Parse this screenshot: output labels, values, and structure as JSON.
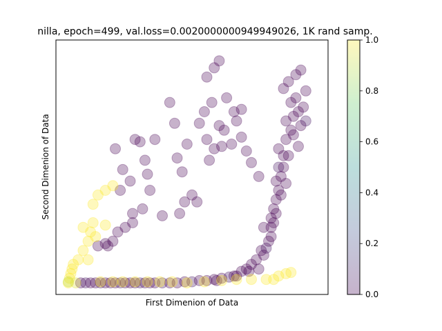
{
  "chart_data": {
    "type": "scatter",
    "title": "nilla, epoch=499, val.loss=0.0020000000949949026, 1K rand samp.",
    "xlabel": "First Dimenion of Data",
    "ylabel": "Second Dimenion of Data",
    "xticks": false,
    "yticks": false,
    "xlim": [
      -0.05,
      1.05
    ],
    "ylim": [
      -0.05,
      1.05
    ],
    "marker_alpha": 0.3,
    "colormap": "viridis",
    "colorbar": {
      "range": [
        0.0,
        1.0
      ],
      "tick_labels": [
        "0.0",
        "0.2",
        "0.4",
        "0.6",
        "0.8",
        "1.0"
      ]
    },
    "colormap_stops": [
      "#440154",
      "#3b528b",
      "#21918c",
      "#5ec962",
      "#fde725"
    ],
    "points": [
      {
        "x": 0.05,
        "y": 0.0,
        "c": 0.0
      },
      {
        "x": 0.07,
        "y": 0.0,
        "c": 0.05
      },
      {
        "x": 0.09,
        "y": 0.0,
        "c": 0.0
      },
      {
        "x": 0.11,
        "y": 0.0,
        "c": 0.0
      },
      {
        "x": 0.13,
        "y": 0.0,
        "c": 0.05
      },
      {
        "x": 0.15,
        "y": 0.0,
        "c": 0.0
      },
      {
        "x": 0.17,
        "y": 0.0,
        "c": 0.0
      },
      {
        "x": 0.19,
        "y": 0.0,
        "c": 0.0
      },
      {
        "x": 0.21,
        "y": 0.0,
        "c": 0.05
      },
      {
        "x": 0.23,
        "y": 0.0,
        "c": 0.0
      },
      {
        "x": 0.25,
        "y": 0.0,
        "c": 0.0
      },
      {
        "x": 0.27,
        "y": 0.0,
        "c": 0.0
      },
      {
        "x": 0.29,
        "y": 0.0,
        "c": 0.05
      },
      {
        "x": 0.31,
        "y": 0.0,
        "c": 0.0
      },
      {
        "x": 0.33,
        "y": 0.0,
        "c": 0.0
      },
      {
        "x": 0.35,
        "y": 0.0,
        "c": 0.0
      },
      {
        "x": 0.38,
        "y": 0.0,
        "c": 0.05
      },
      {
        "x": 0.41,
        "y": 0.0,
        "c": 0.0
      },
      {
        "x": 0.44,
        "y": 0.0,
        "c": 0.0
      },
      {
        "x": 0.47,
        "y": 0.005,
        "c": 0.0
      },
      {
        "x": 0.5,
        "y": 0.005,
        "c": 0.05
      },
      {
        "x": 0.53,
        "y": 0.01,
        "c": 0.0
      },
      {
        "x": 0.56,
        "y": 0.01,
        "c": 0.0
      },
      {
        "x": 0.59,
        "y": 0.015,
        "c": 0.0
      },
      {
        "x": 0.62,
        "y": 0.02,
        "c": 0.0
      },
      {
        "x": 0.65,
        "y": 0.025,
        "c": 0.05
      },
      {
        "x": 0.68,
        "y": 0.03,
        "c": 0.0
      },
      {
        "x": 0.7,
        "y": 0.05,
        "c": 0.0
      },
      {
        "x": 0.72,
        "y": 0.06,
        "c": 0.0
      },
      {
        "x": 0.74,
        "y": 0.08,
        "c": 0.0
      },
      {
        "x": 0.77,
        "y": 0.06,
        "c": 0.0
      },
      {
        "x": 0.79,
        "y": 0.12,
        "c": 0.0
      },
      {
        "x": 0.8,
        "y": 0.15,
        "c": 0.05
      },
      {
        "x": 0.81,
        "y": 0.18,
        "c": 0.0
      },
      {
        "x": 0.79,
        "y": 0.24,
        "c": 0.0
      },
      {
        "x": 0.82,
        "y": 0.24,
        "c": 0.0
      },
      {
        "x": 0.82,
        "y": 0.28,
        "c": 0.0
      },
      {
        "x": 0.83,
        "y": 0.32,
        "c": 0.0
      },
      {
        "x": 0.84,
        "y": 0.36,
        "c": 0.0
      },
      {
        "x": 0.85,
        "y": 0.4,
        "c": 0.0
      },
      {
        "x": 0.84,
        "y": 0.44,
        "c": 0.0
      },
      {
        "x": 0.86,
        "y": 0.46,
        "c": 0.0
      },
      {
        "x": 0.85,
        "y": 0.5,
        "c": 0.05
      },
      {
        "x": 0.87,
        "y": 0.55,
        "c": 0.0
      },
      {
        "x": 0.85,
        "y": 0.58,
        "c": 0.0
      },
      {
        "x": 0.88,
        "y": 0.62,
        "c": 0.0
      },
      {
        "x": 0.9,
        "y": 0.66,
        "c": 0.0
      },
      {
        "x": 0.88,
        "y": 0.7,
        "c": 0.0
      },
      {
        "x": 0.91,
        "y": 0.72,
        "c": 0.0
      },
      {
        "x": 0.9,
        "y": 0.78,
        "c": 0.0
      },
      {
        "x": 0.92,
        "y": 0.8,
        "c": 0.0
      },
      {
        "x": 0.93,
        "y": 0.74,
        "c": 0.0
      },
      {
        "x": 0.95,
        "y": 0.76,
        "c": 0.0
      },
      {
        "x": 0.94,
        "y": 0.68,
        "c": 0.0
      },
      {
        "x": 0.96,
        "y": 0.7,
        "c": 0.05
      },
      {
        "x": 0.87,
        "y": 0.84,
        "c": 0.0
      },
      {
        "x": 0.89,
        "y": 0.87,
        "c": 0.0
      },
      {
        "x": 0.92,
        "y": 0.9,
        "c": 0.0
      },
      {
        "x": 0.94,
        "y": 0.92,
        "c": 0.0
      },
      {
        "x": 0.96,
        "y": 0.83,
        "c": 0.0
      },
      {
        "x": 0.91,
        "y": 0.64,
        "c": 0.0
      },
      {
        "x": 0.93,
        "y": 0.59,
        "c": 0.0
      },
      {
        "x": 0.89,
        "y": 0.55,
        "c": 0.0
      },
      {
        "x": 0.87,
        "y": 0.5,
        "c": 0.0
      },
      {
        "x": 0.88,
        "y": 0.43,
        "c": 0.0
      },
      {
        "x": 0.86,
        "y": 0.38,
        "c": 0.0
      },
      {
        "x": 0.84,
        "y": 0.3,
        "c": 0.0
      },
      {
        "x": 0.83,
        "y": 0.26,
        "c": 0.0
      },
      {
        "x": 0.82,
        "y": 0.2,
        "c": 0.0
      },
      {
        "x": 0.78,
        "y": 0.14,
        "c": 0.0
      },
      {
        "x": 0.76,
        "y": 0.1,
        "c": 0.0
      },
      {
        "x": 0.73,
        "y": 0.05,
        "c": 0.0
      },
      {
        "x": 0.67,
        "y": 0.03,
        "c": 0.0
      },
      {
        "x": 0.6,
        "y": 0.01,
        "c": 0.0
      },
      {
        "x": 0.19,
        "y": 0.58,
        "c": 0.0
      },
      {
        "x": 0.22,
        "y": 0.49,
        "c": 0.0
      },
      {
        "x": 0.25,
        "y": 0.44,
        "c": 0.0
      },
      {
        "x": 0.21,
        "y": 0.4,
        "c": 0.0
      },
      {
        "x": 0.26,
        "y": 0.3,
        "c": 0.0
      },
      {
        "x": 0.3,
        "y": 0.32,
        "c": 0.0
      },
      {
        "x": 0.33,
        "y": 0.4,
        "c": 0.0
      },
      {
        "x": 0.27,
        "y": 0.62,
        "c": 0.0
      },
      {
        "x": 0.29,
        "y": 0.61,
        "c": 0.0
      },
      {
        "x": 0.31,
        "y": 0.53,
        "c": 0.0
      },
      {
        "x": 0.32,
        "y": 0.47,
        "c": 0.0
      },
      {
        "x": 0.35,
        "y": 0.62,
        "c": 0.0
      },
      {
        "x": 0.38,
        "y": 0.29,
        "c": 0.0
      },
      {
        "x": 0.41,
        "y": 0.78,
        "c": 0.0
      },
      {
        "x": 0.43,
        "y": 0.69,
        "c": 0.0
      },
      {
        "x": 0.44,
        "y": 0.54,
        "c": 0.0
      },
      {
        "x": 0.46,
        "y": 0.48,
        "c": 0.0
      },
      {
        "x": 0.48,
        "y": 0.6,
        "c": 0.0
      },
      {
        "x": 0.5,
        "y": 0.38,
        "c": 0.0
      },
      {
        "x": 0.52,
        "y": 0.35,
        "c": 0.0
      },
      {
        "x": 0.53,
        "y": 0.69,
        "c": 0.0
      },
      {
        "x": 0.55,
        "y": 0.74,
        "c": 0.0
      },
      {
        "x": 0.56,
        "y": 0.62,
        "c": 0.0
      },
      {
        "x": 0.57,
        "y": 0.53,
        "c": 0.0
      },
      {
        "x": 0.58,
        "y": 0.78,
        "c": 0.0
      },
      {
        "x": 0.59,
        "y": 0.58,
        "c": 0.0
      },
      {
        "x": 0.61,
        "y": 0.68,
        "c": 0.0
      },
      {
        "x": 0.62,
        "y": 0.59,
        "c": 0.0
      },
      {
        "x": 0.63,
        "y": 0.66,
        "c": 0.0
      },
      {
        "x": 0.66,
        "y": 0.6,
        "c": 0.0
      },
      {
        "x": 0.68,
        "y": 0.7,
        "c": 0.0
      },
      {
        "x": 0.7,
        "y": 0.75,
        "c": 0.0
      },
      {
        "x": 0.72,
        "y": 0.57,
        "c": 0.0
      },
      {
        "x": 0.74,
        "y": 0.52,
        "c": 0.0
      },
      {
        "x": 0.77,
        "y": 0.46,
        "c": 0.0
      },
      {
        "x": 0.56,
        "y": 0.89,
        "c": 0.0
      },
      {
        "x": 0.59,
        "y": 0.93,
        "c": 0.0
      },
      {
        "x": 0.61,
        "y": 0.96,
        "c": 0.0
      },
      {
        "x": 0.64,
        "y": 0.8,
        "c": 0.0
      },
      {
        "x": 0.67,
        "y": 0.74,
        "c": 0.0
      },
      {
        "x": 0.7,
        "y": 0.63,
        "c": 0.0
      },
      {
        "x": 0.12,
        "y": 0.16,
        "c": 0.0
      },
      {
        "x": 0.15,
        "y": 0.17,
        "c": 0.0
      },
      {
        "x": 0.18,
        "y": 0.18,
        "c": 0.0
      },
      {
        "x": 0.2,
        "y": 0.22,
        "c": 0.0
      },
      {
        "x": 0.23,
        "y": 0.24,
        "c": 0.0
      },
      {
        "x": 0.26,
        "y": 0.26,
        "c": 0.0
      },
      {
        "x": 0.16,
        "y": 0.16,
        "c": 0.0
      },
      {
        "x": 0.47,
        "y": 0.35,
        "c": 0.0
      },
      {
        "x": 0.45,
        "y": 0.3,
        "c": 0.0
      },
      {
        "x": 0.0,
        "y": 0.0,
        "c": 1.0
      },
      {
        "x": 0.005,
        "y": 0.02,
        "c": 1.0
      },
      {
        "x": 0.01,
        "y": 0.04,
        "c": 1.0
      },
      {
        "x": 0.015,
        "y": 0.06,
        "c": 1.0
      },
      {
        "x": 0.02,
        "y": 0.08,
        "c": 1.0
      },
      {
        "x": 0.04,
        "y": 0.1,
        "c": 1.0
      },
      {
        "x": 0.06,
        "y": 0.14,
        "c": 1.0
      },
      {
        "x": 0.08,
        "y": 0.18,
        "c": 1.0
      },
      {
        "x": 0.09,
        "y": 0.22,
        "c": 1.0
      },
      {
        "x": 0.1,
        "y": 0.26,
        "c": 1.0
      },
      {
        "x": 0.1,
        "y": 0.34,
        "c": 1.0
      },
      {
        "x": 0.12,
        "y": 0.38,
        "c": 1.0
      },
      {
        "x": 0.15,
        "y": 0.4,
        "c": 1.0
      },
      {
        "x": 0.18,
        "y": 0.42,
        "c": 1.0
      },
      {
        "x": 0.08,
        "y": 0.1,
        "c": 1.0
      },
      {
        "x": 0.06,
        "y": 0.24,
        "c": 1.0
      },
      {
        "x": 0.15,
        "y": 0.25,
        "c": 1.0
      },
      {
        "x": 0.11,
        "y": 0.2,
        "c": 1.0
      },
      {
        "x": 0.0,
        "y": 0.005,
        "c": 0.9
      },
      {
        "x": 0.03,
        "y": 0.0,
        "c": 0.95
      },
      {
        "x": 0.13,
        "y": 0.005,
        "c": 1.0
      },
      {
        "x": 0.18,
        "y": 0.005,
        "c": 1.0
      },
      {
        "x": 0.22,
        "y": 0.005,
        "c": 1.0
      },
      {
        "x": 0.27,
        "y": 0.005,
        "c": 1.0
      },
      {
        "x": 0.32,
        "y": 0.005,
        "c": 1.0
      },
      {
        "x": 0.37,
        "y": 0.005,
        "c": 1.0
      },
      {
        "x": 0.42,
        "y": 0.005,
        "c": 1.0
      },
      {
        "x": 0.48,
        "y": 0.0,
        "c": 1.0
      },
      {
        "x": 0.55,
        "y": 0.005,
        "c": 1.0
      },
      {
        "x": 0.62,
        "y": 0.01,
        "c": 1.0
      },
      {
        "x": 0.68,
        "y": 0.015,
        "c": 1.0
      },
      {
        "x": 0.74,
        "y": 0.015,
        "c": 1.0
      },
      {
        "x": 0.8,
        "y": 0.015,
        "c": 1.0
      },
      {
        "x": 0.83,
        "y": 0.015,
        "c": 1.0
      },
      {
        "x": 0.85,
        "y": 0.03,
        "c": 1.0
      },
      {
        "x": 0.88,
        "y": 0.04,
        "c": 1.0
      },
      {
        "x": 0.9,
        "y": 0.045,
        "c": 1.0
      }
    ]
  }
}
